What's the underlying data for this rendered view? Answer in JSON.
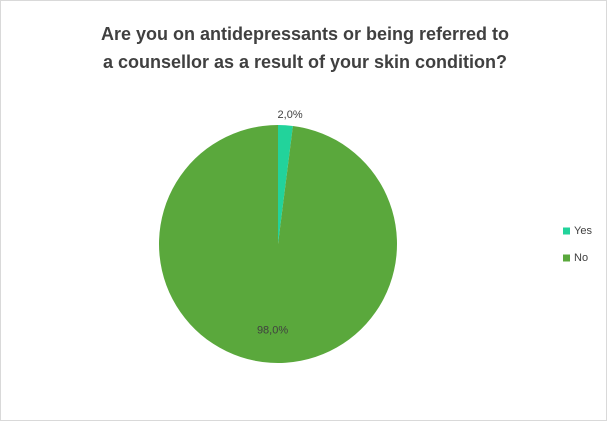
{
  "chart_data": {
    "type": "pie",
    "title": [
      "Are you on antidepressants or being referred to",
      "a counsellor as a result of your skin condition?"
    ],
    "categories": [
      "Yes",
      "No"
    ],
    "values": [
      2.0,
      98.0
    ],
    "value_labels": [
      "2,0%",
      "98,0%"
    ],
    "colors": [
      "#22d39b",
      "#5aa83c"
    ],
    "legend": "right"
  }
}
